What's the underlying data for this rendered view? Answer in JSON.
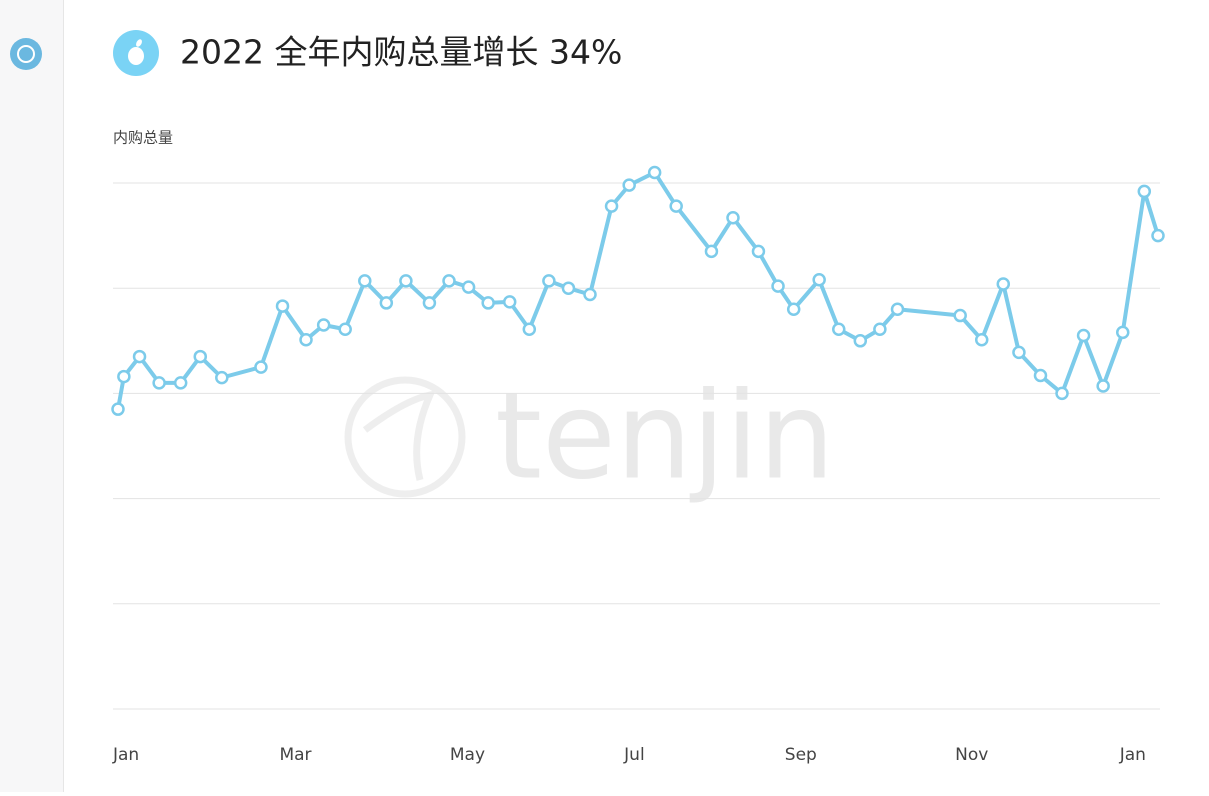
{
  "chart_data": {
    "type": "line",
    "title": "2022 全年内购总量增长 34%",
    "y_label": "内购总量",
    "watermark": "tenjin",
    "color": "#7ccbea",
    "grid": true,
    "x": [
      0,
      0.3,
      1.1,
      2.1,
      3.2,
      4.2,
      5.3,
      7.3,
      8.4,
      9.6,
      10.5,
      11.6,
      12.6,
      13.7,
      14.7,
      15.9,
      16.9,
      17.9,
      18.9,
      20.0,
      21.0,
      22.0,
      23.0,
      24.1,
      25.2,
      26.1,
      27.4,
      28.5,
      30.3,
      31.4,
      32.7,
      33.7,
      34.5,
      35.8,
      36.8,
      37.9,
      38.9,
      39.8,
      43.0,
      44.1,
      45.2,
      46.0,
      47.1,
      48.2,
      49.3,
      50.3,
      51.3,
      52.4,
      53.1
    ],
    "values": [
      2.85,
      3.16,
      3.35,
      3.1,
      3.1,
      3.35,
      3.15,
      3.25,
      3.83,
      3.51,
      3.65,
      3.61,
      4.07,
      3.86,
      4.07,
      3.86,
      4.07,
      4.01,
      3.86,
      3.87,
      3.61,
      4.07,
      4.0,
      3.94,
      4.78,
      4.98,
      5.1,
      4.78,
      4.35,
      4.67,
      4.35,
      4.02,
      3.8,
      4.08,
      3.61,
      3.5,
      3.61,
      3.8,
      3.74,
      3.51,
      4.04,
      3.39,
      3.17,
      3.0,
      3.55,
      3.07,
      3.58,
      4.92,
      4.5
    ],
    "xlim": [
      0,
      53.1
    ],
    "xticks": [
      {
        "value": 0,
        "label": "Jan"
      },
      {
        "value": 8.5,
        "label": "Mar"
      },
      {
        "value": 17.2,
        "label": "May"
      },
      {
        "value": 26.1,
        "label": "Jul"
      },
      {
        "value": 34.3,
        "label": "Sep"
      },
      {
        "value": 43.0,
        "label": "Nov"
      },
      {
        "value": 51.4,
        "label": "Jan"
      }
    ],
    "ylim": [
      0,
      5
    ],
    "yticks": [
      0,
      1,
      2,
      3,
      4,
      5
    ]
  }
}
